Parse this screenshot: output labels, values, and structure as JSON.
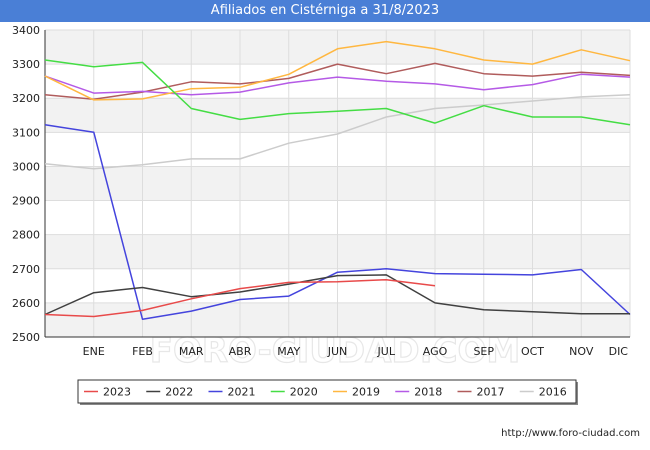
{
  "page": {
    "title": "Afiliados en Cistérniga a 31/8/2023",
    "footer_url": "http://www.foro-ciudad.com",
    "watermark": "FORO-CIUDAD.COM"
  },
  "colors": {
    "title_bg": "#4a7fd6",
    "band": "#f2f2f2",
    "grid": "#dddddd"
  },
  "chart_data": {
    "type": "line",
    "title": "Afiliados en Cistérniga a 31/8/2023",
    "xlabel": "",
    "ylabel": "",
    "categories": [
      "",
      "ENE",
      "FEB",
      "MAR",
      "ABR",
      "MAY",
      "JUN",
      "JUL",
      "AGO",
      "SEP",
      "OCT",
      "NOV",
      "DIC"
    ],
    "ylim": [
      2500,
      3400
    ],
    "yticks": [
      2500,
      2600,
      2700,
      2800,
      2900,
      3000,
      3100,
      3200,
      3300,
      3400
    ],
    "grid": true,
    "legend_position": "bottom",
    "series": [
      {
        "name": "2023",
        "color": "#e84a4a",
        "values": [
          2566,
          2560,
          2578,
          2612,
          2642,
          2660,
          2662,
          2668,
          2650,
          null,
          null,
          null,
          null
        ]
      },
      {
        "name": "2022",
        "color": "#404040",
        "values": [
          2566,
          2630,
          2645,
          2618,
          2632,
          2655,
          2680,
          2682,
          2600,
          2580,
          2574,
          2568,
          2568
        ]
      },
      {
        "name": "2021",
        "color": "#4444dd",
        "values": [
          3122,
          3100,
          2552,
          2576,
          2610,
          2620,
          2690,
          2700,
          2686,
          2684,
          2682,
          2698,
          2566
        ]
      },
      {
        "name": "2020",
        "color": "#44dd44",
        "values": [
          3312,
          3292,
          3305,
          3170,
          3138,
          3155,
          3162,
          3170,
          3127,
          3178,
          3145,
          3145,
          3122
        ]
      },
      {
        "name": "2019",
        "color": "#ffb740",
        "values": [
          3265,
          3195,
          3198,
          3228,
          3232,
          3270,
          3345,
          3366,
          3345,
          3312,
          3300,
          3342,
          3310
        ]
      },
      {
        "name": "2018",
        "color": "#b55ae6",
        "values": [
          3265,
          3215,
          3220,
          3210,
          3218,
          3245,
          3262,
          3250,
          3242,
          3225,
          3240,
          3270,
          3262
        ]
      },
      {
        "name": "2017",
        "color": "#b05c5c",
        "values": [
          3210,
          3197,
          3218,
          3248,
          3242,
          3258,
          3300,
          3272,
          3302,
          3272,
          3265,
          3276,
          3267
        ]
      },
      {
        "name": "2016",
        "color": "#cccccc",
        "values": [
          3008,
          2993,
          3005,
          3022,
          3022,
          3068,
          3095,
          3145,
          3170,
          3180,
          3192,
          3204,
          3210
        ]
      }
    ]
  }
}
